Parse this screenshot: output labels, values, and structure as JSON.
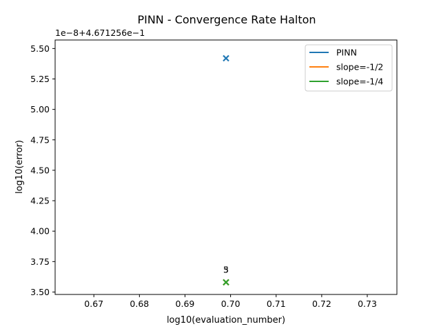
{
  "chart_data": {
    "type": "scatter",
    "title": "PINN - Convergence Rate Halton",
    "xlabel": "log10(evaluation_number)",
    "ylabel": "log10(error)",
    "offset_text": "1e−8+4.671256e−1",
    "xlim": [
      0.6615,
      0.7365
    ],
    "ylim": [
      3.48,
      5.57
    ],
    "xticks": [
      0.67,
      0.68,
      0.69,
      0.7,
      0.71,
      0.72,
      0.73
    ],
    "xtick_labels": [
      "0.67",
      "0.68",
      "0.69",
      "0.70",
      "0.71",
      "0.72",
      "0.73"
    ],
    "yticks": [
      3.5,
      3.75,
      4.0,
      4.25,
      4.5,
      4.75,
      5.0,
      5.25,
      5.5
    ],
    "ytick_labels": [
      "3.50",
      "3.75",
      "4.00",
      "4.25",
      "4.50",
      "4.75",
      "5.00",
      "5.25",
      "5.50"
    ],
    "legend_position": "top-right",
    "grid": false,
    "series": [
      {
        "name": "PINN",
        "color": "#1f77b4",
        "marker": "x",
        "points": [
          {
            "x": 0.699,
            "y": 5.42
          }
        ]
      },
      {
        "name": "slope=-1/2",
        "color": "#ff7f0e",
        "marker": "x",
        "points": [
          {
            "x": 0.699,
            "y": 3.58
          }
        ]
      },
      {
        "name": "slope=-1/4",
        "color": "#2ca02c",
        "marker": "x",
        "points": [
          {
            "x": 0.699,
            "y": 3.58
          }
        ]
      }
    ],
    "annotations": [
      {
        "text": "3",
        "x": 0.699,
        "y": 3.68
      },
      {
        "text": "5",
        "x": 0.699,
        "y": 3.68
      }
    ]
  }
}
